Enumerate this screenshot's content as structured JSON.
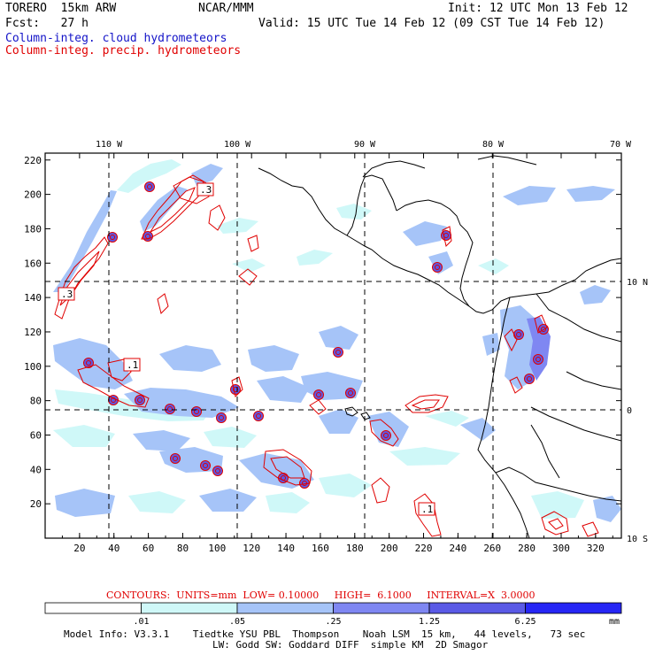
{
  "header": {
    "model": "TORERO  15km ARW",
    "org": "NCAR/MMM",
    "init": "Init: 12 UTC Mon 13 Feb 12",
    "fcst": "Fcst:   27 h",
    "valid": "Valid: 15 UTC Tue 14 Feb 12 (09 CST Tue 14 Feb 12)",
    "field_cloud": "Column-integ. cloud hydrometeors",
    "field_precip": "Column-integ. precip. hydrometeors"
  },
  "colors": {
    "cloud_text": "#1414c8",
    "precip_text": "#e00000",
    "contour": "#e00000",
    "coast": "#000000"
  },
  "map": {
    "lon_labels": [
      "110 W",
      "100 W",
      "90 W",
      "80 W",
      "70 W"
    ],
    "lat_labels": [
      "10 N",
      "0",
      "10 S"
    ],
    "x_ticks": [
      "20",
      "40",
      "60",
      "80",
      "100",
      "120",
      "140",
      "160",
      "180",
      "200",
      "220",
      "240",
      "260",
      "280",
      "300",
      "320"
    ],
    "y_ticks": [
      "220",
      "200",
      "180",
      "160",
      "140",
      "120",
      "100",
      "80",
      "60",
      "40",
      "20"
    ],
    "x_range": [
      0,
      335
    ],
    "y_range": [
      0,
      224
    ],
    "contour_labels": [
      ".3",
      ".3",
      ".1",
      ".1"
    ]
  },
  "contour_info": {
    "label": "CONTOURS:",
    "units": "UNITS=mm",
    "low": "LOW= 0.10000",
    "high": "HIGH=  6.1000",
    "interval": "INTERVAL=X  3.0000"
  },
  "colorbar": {
    "labels": [
      ".01",
      ".05",
      ".25",
      "1.25",
      "6.25"
    ],
    "unit": "mm",
    "colors": [
      "#ffffff",
      "#cff8f8",
      "#a6c4f8",
      "#7f87f2",
      "#5a5ae6",
      "#2626f5"
    ]
  },
  "footer": {
    "line1": "Model Info: V3.3.1    Tiedtke YSU PBL  Thompson    Noah LSM  15 km,   44 levels,   73 sec",
    "line2": "LW: Godd SW: Goddard DIFF  simple KM  2D Smagor"
  }
}
